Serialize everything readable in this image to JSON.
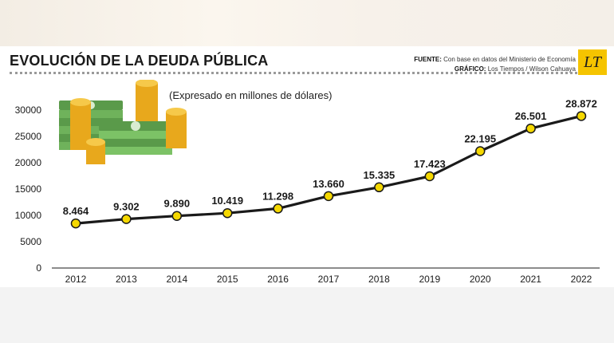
{
  "header": {
    "title": "EVOLUCIÓN DE LA DEUDA PÚBLICA",
    "subtitle": "(Expresado en millones de dólares)",
    "source_label": "FUENTE:",
    "source_text": "Con base en datos del Ministerio de Economía",
    "graphic_label": "GRÁFICO:",
    "graphic_text": "Los Tiempos / Wilson Cahuaya",
    "logo_text": "LT"
  },
  "colors": {
    "line": "#1a1a1a",
    "marker": "#f5d800",
    "marker_stroke": "#1a1a1a",
    "logo": "#f5c400"
  },
  "chart_data": {
    "type": "line",
    "x": [
      "2012",
      "2013",
      "2014",
      "2015",
      "2016",
      "2017",
      "2018",
      "2019",
      "2020",
      "2021",
      "2022"
    ],
    "series": [
      {
        "values": [
          8464,
          9302,
          9890,
          10419,
          11298,
          13660,
          15335,
          17423,
          22195,
          26501,
          28872
        ],
        "data_labels": [
          "8.464",
          "9.302",
          "9.890",
          "10.419",
          "11.298",
          "13.660",
          "15.335",
          "17.423",
          "22.195",
          "26.501",
          "28.872"
        ]
      }
    ],
    "yticks": [
      "0",
      "5000",
      "10000",
      "15000",
      "20000",
      "25000",
      "30000"
    ],
    "ylim": [
      0,
      30000
    ],
    "grid": false,
    "legend": "none"
  }
}
